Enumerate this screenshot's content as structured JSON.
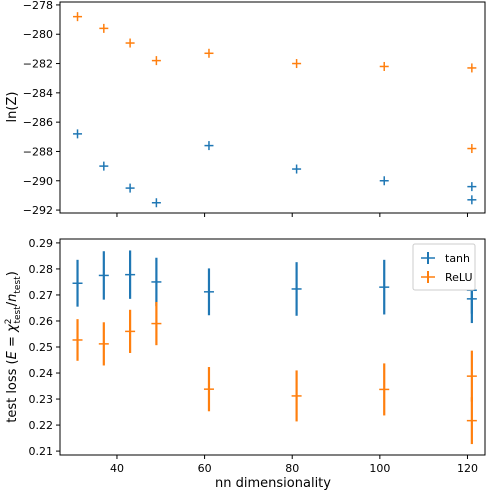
{
  "chart_data": [
    {
      "type": "scatter",
      "ylabel": "ln(Z)",
      "xlim": [
        27,
        124
      ],
      "ylim": [
        -292.2,
        -277.8
      ],
      "yticks": [
        -278,
        -280,
        -282,
        -284,
        -286,
        -288,
        -290,
        -292
      ],
      "grid": false,
      "series": [
        {
          "key": "tanh",
          "color": "#1f77b4",
          "points": [
            {
              "x": 31,
              "y": -286.8
            },
            {
              "x": 37,
              "y": -289.0
            },
            {
              "x": 43,
              "y": -290.5
            },
            {
              "x": 49,
              "y": -291.5
            },
            {
              "x": 61,
              "y": -287.6
            },
            {
              "x": 81,
              "y": -289.2
            },
            {
              "x": 101,
              "y": -290.0
            },
            {
              "x": 121,
              "y": -290.4
            },
            {
              "x": 121,
              "y": -291.3
            }
          ]
        },
        {
          "key": "relu",
          "color": "#ff7f0e",
          "points": [
            {
              "x": 31,
              "y": -278.8
            },
            {
              "x": 37,
              "y": -279.6
            },
            {
              "x": 43,
              "y": -280.6
            },
            {
              "x": 49,
              "y": -281.8
            },
            {
              "x": 61,
              "y": -281.3
            },
            {
              "x": 81,
              "y": -282.0
            },
            {
              "x": 101,
              "y": -282.2
            },
            {
              "x": 121,
              "y": -282.3
            },
            {
              "x": 121,
              "y": -287.8
            }
          ]
        }
      ]
    },
    {
      "type": "errorbar",
      "xlabel": "nn dimensionality",
      "ylabel_prefix": "test loss (",
      "ylabel_E": "E",
      "ylabel_eq": " = ",
      "ylabel_chi": "χ",
      "ylabel_sup": "2",
      "ylabel_sub": "test",
      "ylabel_slash": "/",
      "ylabel_n": "n",
      "ylabel_nsub": "test",
      "ylabel_suffix": ")",
      "xlim": [
        27,
        124
      ],
      "ylim": [
        0.2085,
        0.2915
      ],
      "xticks": [
        40,
        60,
        80,
        100,
        120
      ],
      "yticks": [
        0.21,
        0.22,
        0.23,
        0.24,
        0.25,
        0.26,
        0.27,
        0.28,
        0.29
      ],
      "grid": false,
      "legend": {
        "placement": "top-right"
      },
      "series": [
        {
          "key": "tanh",
          "name": "tanh",
          "color": "#1f77b4",
          "points": [
            {
              "x": 31,
              "y": 0.2745,
              "err": 0.009
            },
            {
              "x": 37,
              "y": 0.2775,
              "err": 0.0093
            },
            {
              "x": 43,
              "y": 0.2778,
              "err": 0.0093
            },
            {
              "x": 49,
              "y": 0.275,
              "err": 0.0093
            },
            {
              "x": 61,
              "y": 0.2712,
              "err": 0.009
            },
            {
              "x": 81,
              "y": 0.2723,
              "err": 0.0103
            },
            {
              "x": 101,
              "y": 0.273,
              "err": 0.0105
            },
            {
              "x": 121,
              "y": 0.2718,
              "err": 0.009
            },
            {
              "x": 121,
              "y": 0.2685,
              "err": 0.0093
            }
          ]
        },
        {
          "key": "relu",
          "name": "ReLU",
          "color": "#ff7f0e",
          "points": [
            {
              "x": 31,
              "y": 0.2527,
              "err": 0.008
            },
            {
              "x": 37,
              "y": 0.2512,
              "err": 0.0083
            },
            {
              "x": 43,
              "y": 0.256,
              "err": 0.0083
            },
            {
              "x": 49,
              "y": 0.259,
              "err": 0.0083
            },
            {
              "x": 61,
              "y": 0.2338,
              "err": 0.0085
            },
            {
              "x": 81,
              "y": 0.2312,
              "err": 0.0098
            },
            {
              "x": 101,
              "y": 0.2337,
              "err": 0.01
            },
            {
              "x": 121,
              "y": 0.2388,
              "err": 0.0098
            },
            {
              "x": 121,
              "y": 0.2217,
              "err": 0.009
            }
          ]
        }
      ]
    }
  ]
}
